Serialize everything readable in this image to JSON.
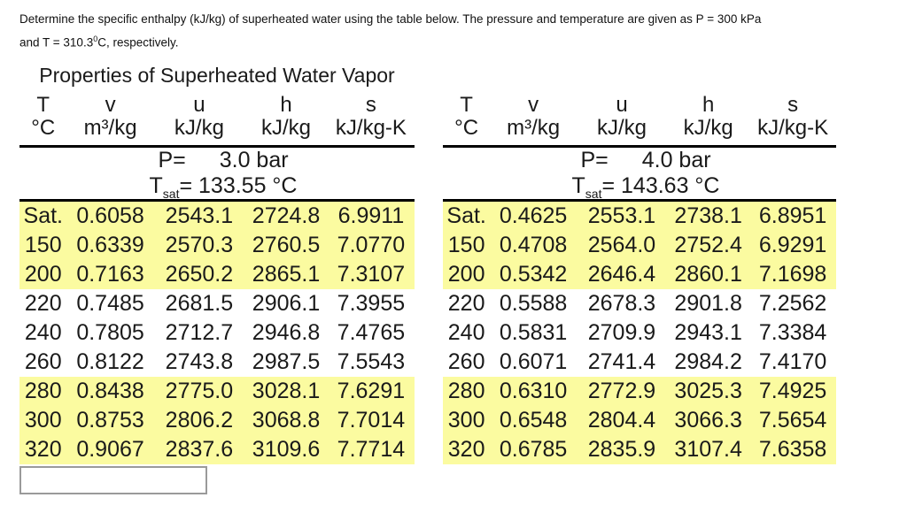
{
  "problem": {
    "line1": "Determine the specific enthalpy (kJ/kg) of superheated water using the table below. The pressure and temperature are given as P = 300 kPa",
    "line2_pre": "and T = 310.3",
    "line2_sup": "0",
    "line2_post": "C, respectively."
  },
  "title": "Properties of Superheated Water Vapor",
  "columns": {
    "symbols": [
      "T",
      "v",
      "u",
      "h",
      "s"
    ],
    "units": [
      "°C",
      "m³/kg",
      "kJ/kg",
      "kJ/kg",
      "kJ/kg-K"
    ]
  },
  "tables": [
    {
      "pressure_label": "P=",
      "pressure_value": "3.0 bar",
      "tsat_prefix": "T",
      "tsat_sub": "sat",
      "tsat_rest": "= 133.55 °C",
      "highlighted_rows": [
        0,
        1,
        2,
        6,
        7,
        8
      ],
      "rows": [
        [
          "Sat.",
          "0.6058",
          "2543.1",
          "2724.8",
          "6.9911"
        ],
        [
          "150",
          "0.6339",
          "2570.3",
          "2760.5",
          "7.0770"
        ],
        [
          "200",
          "0.7163",
          "2650.2",
          "2865.1",
          "7.3107"
        ],
        [
          "220",
          "0.7485",
          "2681.5",
          "2906.1",
          "7.3955"
        ],
        [
          "240",
          "0.7805",
          "2712.7",
          "2946.8",
          "7.4765"
        ],
        [
          "260",
          "0.8122",
          "2743.8",
          "2987.5",
          "7.5543"
        ],
        [
          "280",
          "0.8438",
          "2775.0",
          "3028.1",
          "7.6291"
        ],
        [
          "300",
          "0.8753",
          "2806.2",
          "3068.8",
          "7.7014"
        ],
        [
          "320",
          "0.9067",
          "2837.6",
          "3109.6",
          "7.7714"
        ]
      ]
    },
    {
      "pressure_label": "P=",
      "pressure_value": "4.0 bar",
      "tsat_prefix": "T",
      "tsat_sub": "sat",
      "tsat_rest": "= 143.63 °C",
      "highlighted_rows": [
        0,
        1,
        2,
        6,
        7,
        8
      ],
      "rows": [
        [
          "Sat.",
          "0.4625",
          "2553.1",
          "2738.1",
          "6.8951"
        ],
        [
          "150",
          "0.4708",
          "2564.0",
          "2752.4",
          "6.9291"
        ],
        [
          "200",
          "0.5342",
          "2646.4",
          "2860.1",
          "7.1698"
        ],
        [
          "220",
          "0.5588",
          "2678.3",
          "2901.8",
          "7.2562"
        ],
        [
          "240",
          "0.5831",
          "2709.9",
          "2943.1",
          "7.3384"
        ],
        [
          "260",
          "0.6071",
          "2741.4",
          "2984.2",
          "7.4170"
        ],
        [
          "280",
          "0.6310",
          "2772.9",
          "3025.3",
          "7.4925"
        ],
        [
          "300",
          "0.6548",
          "2804.4",
          "3066.3",
          "7.5654"
        ],
        [
          "320",
          "0.6785",
          "2835.9",
          "3107.4",
          "7.6358"
        ]
      ]
    }
  ],
  "answer_input": {
    "value": "",
    "placeholder": ""
  },
  "colors": {
    "highlight": "#fbfba0",
    "rule": "#000000",
    "text": "#1a1a1a",
    "input_border": "#9a9a9a"
  }
}
